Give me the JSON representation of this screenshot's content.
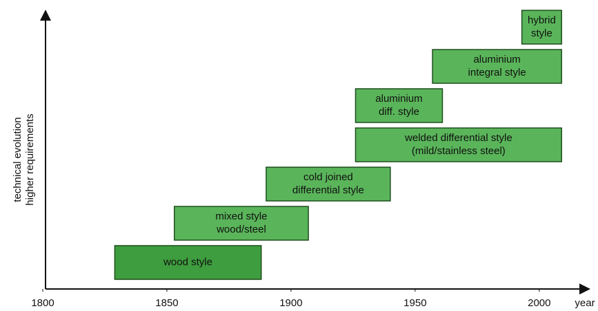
{
  "chart_data": {
    "type": "timeline",
    "x_label": "year",
    "y_label": [
      "technical evolution",
      "higher requirements"
    ],
    "xlim": [
      1800,
      2017
    ],
    "xticks": [
      1800,
      1850,
      1900,
      1950,
      2000
    ],
    "bars": [
      {
        "label": [
          "wood style"
        ],
        "start": 1829,
        "end": 1888,
        "color": "#3e9d3e"
      },
      {
        "label": [
          "mixed style",
          "wood/steel"
        ],
        "start": 1853,
        "end": 1907,
        "color": "#5ab55a"
      },
      {
        "label": [
          "cold joined",
          "differential style"
        ],
        "start": 1890,
        "end": 1940,
        "color": "#5ab55a"
      },
      {
        "label": [
          "welded differential style",
          "(mild/stainless steel)"
        ],
        "start": 1926,
        "end": 2009,
        "color": "#5ab55a"
      },
      {
        "label": [
          "aluminium",
          "diff. style"
        ],
        "start": 1926,
        "end": 1961,
        "color": "#5ab55a"
      },
      {
        "label": [
          "aluminium",
          "integral style"
        ],
        "start": 1957,
        "end": 2009,
        "color": "#5ab55a"
      },
      {
        "label": [
          "hybrid",
          "style"
        ],
        "start": 1993,
        "end": 2009,
        "color": "#5ab55a"
      }
    ]
  }
}
